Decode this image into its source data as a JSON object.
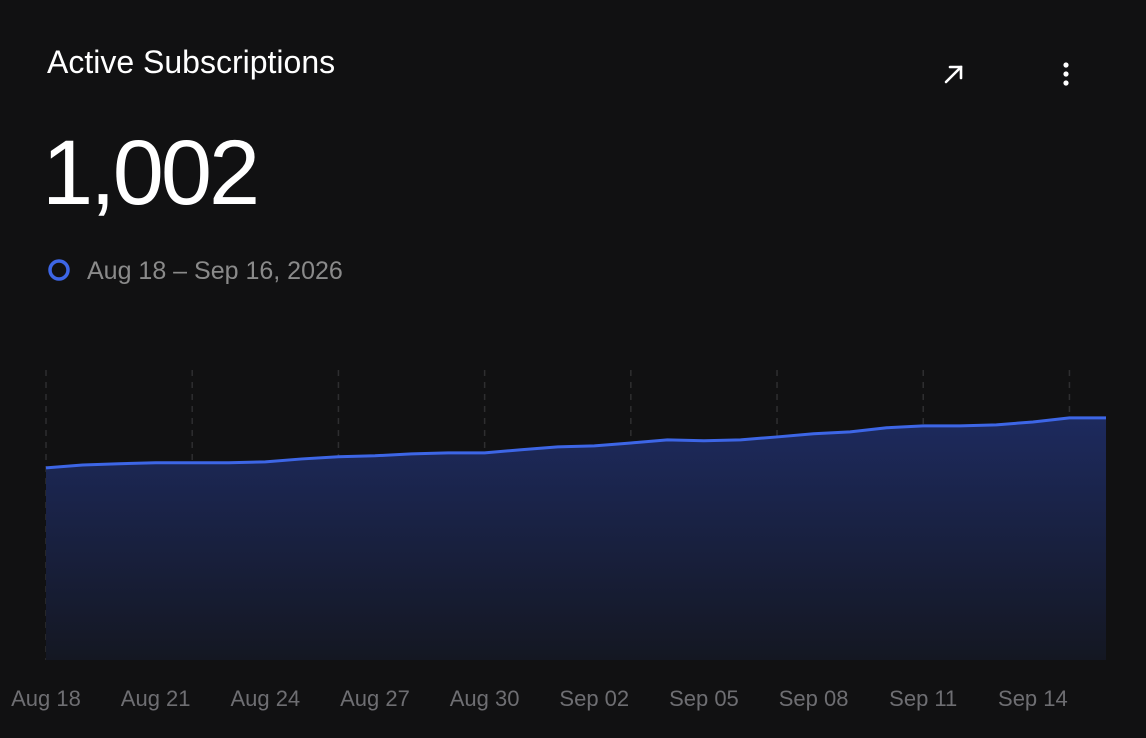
{
  "card": {
    "metric": "1,002"
  },
  "chart_data": {
    "type": "area",
    "title": "Active Subscriptions",
    "categories": [
      "Aug 18",
      null,
      null,
      "Aug 21",
      null,
      null,
      "Aug 24",
      null,
      null,
      "Aug 27",
      null,
      null,
      "Aug 30",
      null,
      null,
      "Sep 02",
      null,
      null,
      "Sep 05",
      null,
      null,
      "Sep 08",
      null,
      null,
      "Sep 11",
      null,
      null,
      "Sep 14",
      null,
      null
    ],
    "series": [
      {
        "name": "Aug 18 – Sep 16, 2026",
        "color": "#3d66e6",
        "values": [
          795,
          807,
          812,
          816,
          816,
          816,
          820,
          832,
          841,
          845,
          853,
          857,
          857,
          870,
          882,
          886,
          898,
          911,
          907,
          911,
          923,
          936,
          944,
          961,
          969,
          969,
          973,
          985,
          1002,
          1002
        ]
      }
    ],
    "ylim": [
      0,
      1200
    ],
    "grid": true
  }
}
